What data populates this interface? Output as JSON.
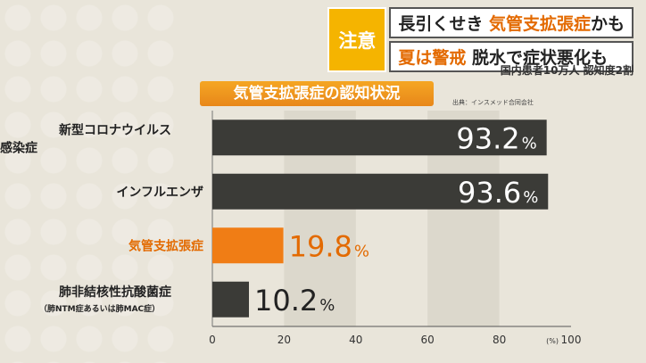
{
  "headline": {
    "badge": "注意",
    "line1_pre": "長引くせき ",
    "line1_highlight": "気管支拡張症",
    "line1_post": "かも",
    "line2_highlight": "夏は警戒",
    "line2_post": " 脱水で症状悪化も"
  },
  "subnote": "国内患者10万人 認知度2割",
  "source": "出典：インスメッド合同会社",
  "colors": {
    "bar_dark": "#3b3b37",
    "bar_highlight": "#f07d15",
    "highlight_text": "#e36a00"
  },
  "chart_data": {
    "type": "bar",
    "title": "気管支拡張症の認知状況",
    "orientation": "horizontal",
    "categories": [
      [
        "新型コロナウイルス",
        "感染症"
      ],
      [
        "インフルエンザ"
      ],
      [
        "気管支拡張症"
      ],
      [
        "肺非結核性抗酸菌症",
        "（肺NTM症あるいは肺MAC症）"
      ]
    ],
    "values": [
      93.2,
      93.6,
      19.8,
      10.2
    ],
    "value_labels": [
      "93.2",
      "93.6",
      "19.8",
      "10.2"
    ],
    "value_unit": "%",
    "highlight_index": 2,
    "xlim": [
      0,
      100
    ],
    "xticks": [
      0,
      20,
      40,
      60,
      80,
      100
    ],
    "xtick_unit_label": "(%)",
    "grid": "alternating-bands"
  }
}
